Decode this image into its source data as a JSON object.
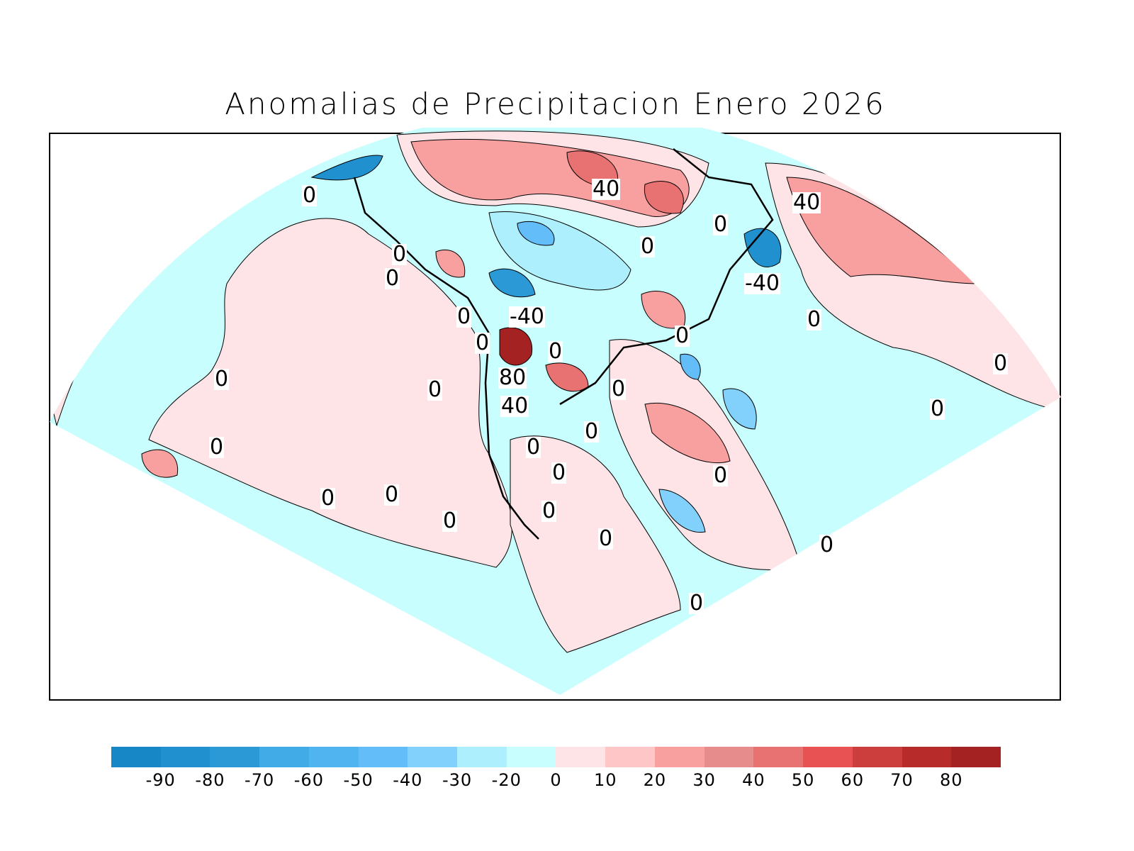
{
  "title": "Anomalias de Precipitacion Enero 2026",
  "colorbar": {
    "colors": [
      "#1887c6",
      "#2190cf",
      "#2b99d6",
      "#41abe8",
      "#4fb4f0",
      "#62bdf8",
      "#82d1fd",
      "#aeeffd",
      "#c8fefe",
      "#fee4e6",
      "#fec6c6",
      "#f8a0a0",
      "#e68c8c",
      "#e87272",
      "#e85252",
      "#cc3e3e",
      "#b82b2b",
      "#a42222"
    ],
    "labels": [
      "-90",
      "-80",
      "-70",
      "-60",
      "-50",
      "-40",
      "-30",
      "-20",
      "0",
      "10",
      "20",
      "30",
      "40",
      "50",
      "60",
      "70",
      "80"
    ]
  },
  "contour_labels": [
    "0",
    "40",
    "40",
    "0",
    "0",
    "0",
    "0",
    "-40",
    "0",
    "-40",
    "0",
    "0",
    "0",
    "0",
    "0",
    "0",
    "80",
    "40",
    "0",
    "0",
    "0",
    "0",
    "0",
    "0",
    "0",
    "0",
    "0",
    "0",
    "0",
    "0",
    "0",
    "0",
    "0"
  ]
}
